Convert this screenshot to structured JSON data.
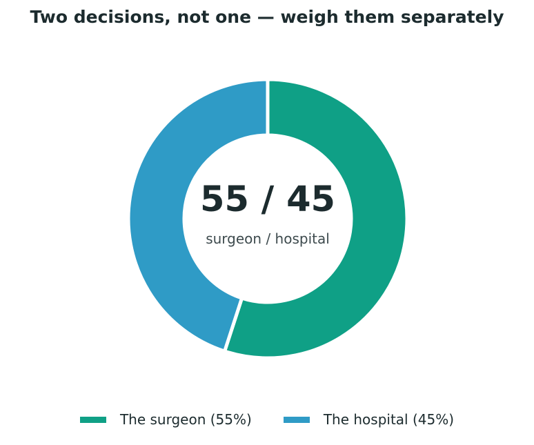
{
  "chart_data": {
    "type": "pie",
    "title": "Two decisions, not one — weigh them separately",
    "center_value": "55 / 45",
    "center_caption": "surgeon / hospital",
    "legend_placement": "bottom",
    "series": [
      {
        "name": "The surgeon (55%)",
        "value": 55,
        "color": "#0fa086"
      },
      {
        "name": "The hospital (45%)",
        "value": 45,
        "color": "#2f9bc6"
      }
    ]
  }
}
